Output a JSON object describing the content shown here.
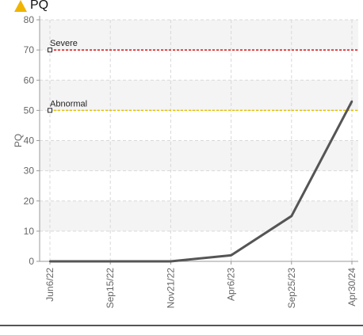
{
  "header": {
    "title": "PQ",
    "icon": "warning-triangle-icon",
    "icon_color": "#f0b400"
  },
  "chart_data": {
    "type": "line",
    "title": "PQ",
    "ylabel": "PQ",
    "xlabel": "",
    "ylim": [
      0,
      80
    ],
    "yticks": [
      0,
      10,
      20,
      30,
      40,
      50,
      60,
      70,
      80
    ],
    "grid": true,
    "categories": [
      "Jun6/22",
      "Sep15/22",
      "Nov21/22",
      "Apr6/23",
      "Sep25/23",
      "Apr30/24"
    ],
    "series": [
      {
        "values": [
          0,
          0,
          0,
          2,
          15,
          53
        ],
        "color": "#555555"
      }
    ],
    "thresholds": [
      {
        "label": "Severe",
        "value": 70,
        "color": "#dd1111"
      },
      {
        "label": "Abnormal",
        "value": 50,
        "color": "#e8c000"
      }
    ]
  }
}
